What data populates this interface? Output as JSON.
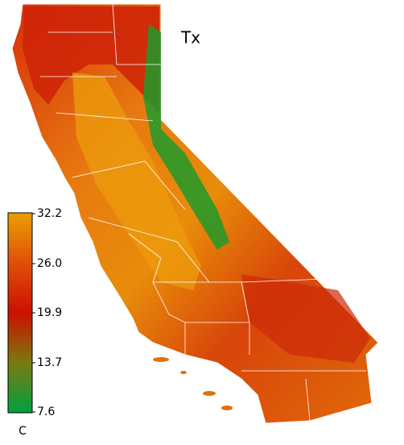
{
  "map": {
    "title": "Tx",
    "colorbar": {
      "unit": "C",
      "range": [
        7.6,
        32.2
      ],
      "ticks": [
        7.6,
        13.7,
        19.9,
        {
          "value": 26,
          "label": "26.0"
        },
        32.2
      ],
      "colors": [
        "#00a040",
        "#7a7a10",
        "#cc1000",
        "#e0500a",
        "#eaa000"
      ]
    }
  }
}
